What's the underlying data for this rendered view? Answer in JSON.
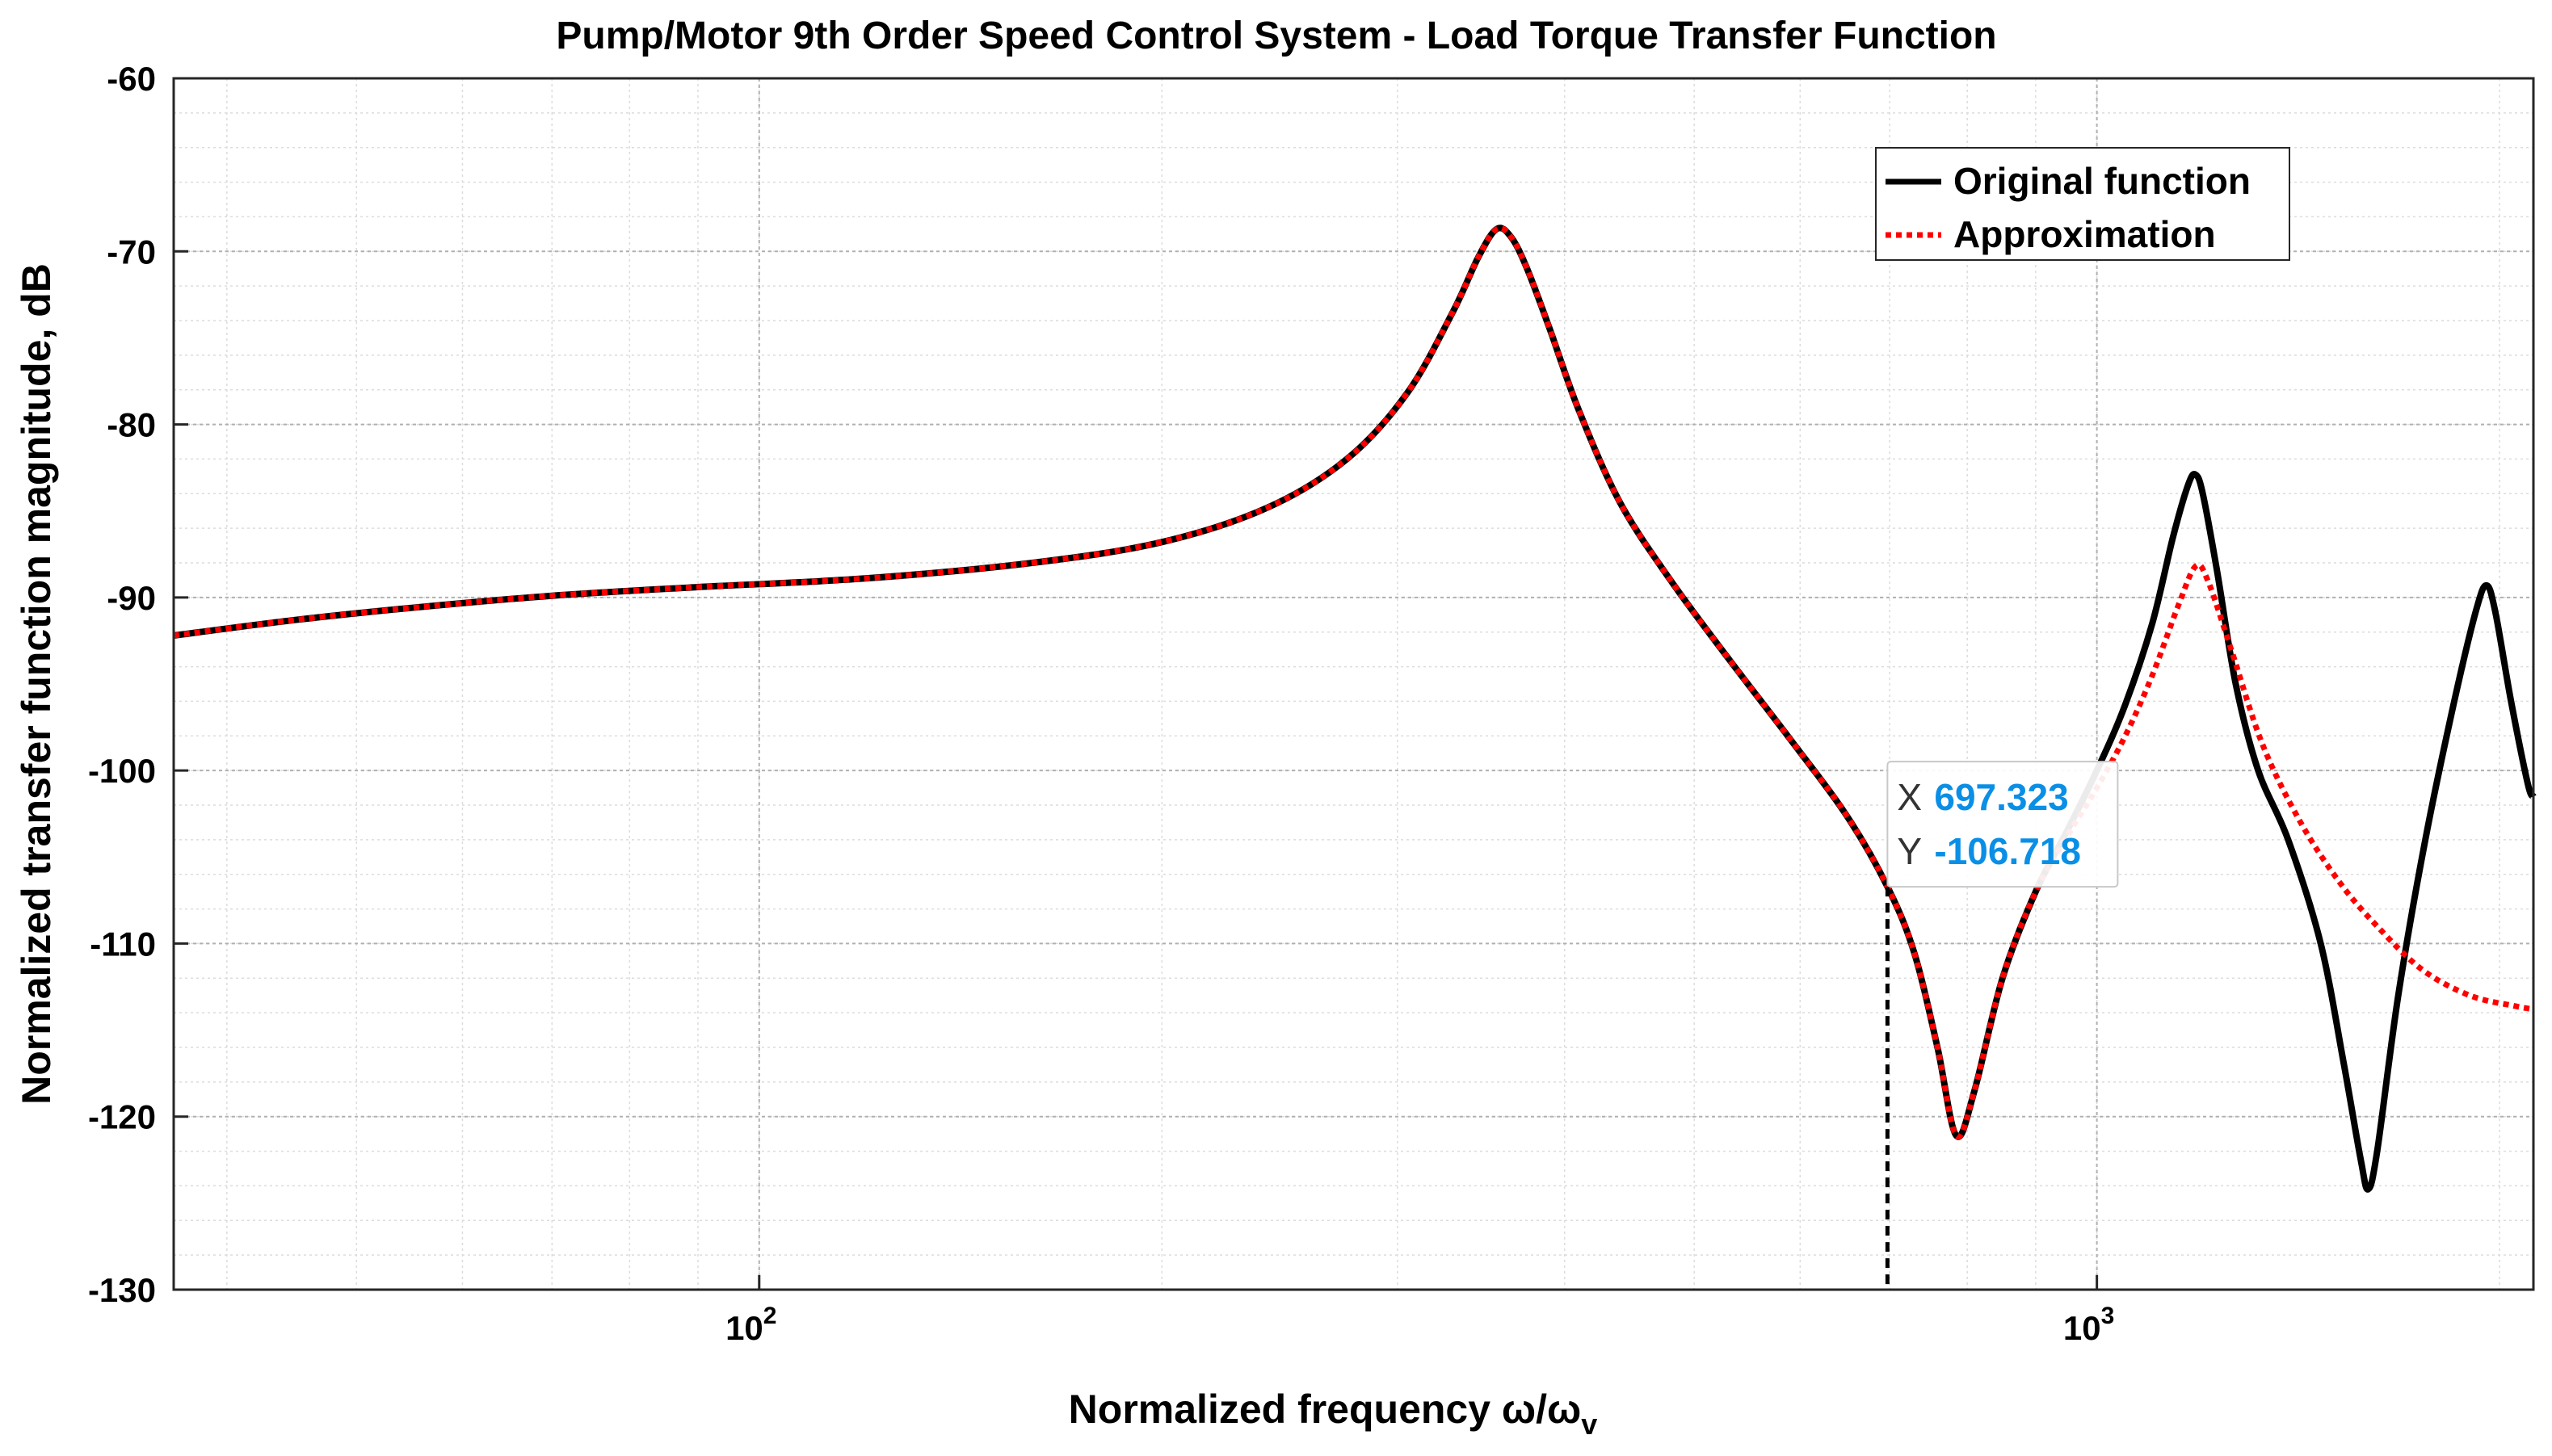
{
  "chart_data": {
    "type": "line",
    "title": "Pump/Motor 9th Order Speed Control System - Load Torque Transfer Function",
    "xlabel": "Normalized frequency ω/ω",
    "xlabel_subscript": "v",
    "ylabel": "Normalized transfer function magnitude, dB",
    "xscale": "log",
    "xlim": [
      36.5,
      2120
    ],
    "ylim": [
      -130,
      -60
    ],
    "yticks": [
      -60,
      -70,
      -80,
      -90,
      -100,
      -110,
      -120,
      -130
    ],
    "ytick_labels": [
      "-60",
      "-70",
      "-80",
      "-90",
      "-100",
      "-110",
      "-120",
      "-130"
    ],
    "xticks": [
      100,
      1000
    ],
    "xtick_base": "10",
    "xtick_exponents": [
      "2",
      "3"
    ],
    "grid": true,
    "minor_grid": true,
    "legend_position": "top-right",
    "series": [
      {
        "name": "Original function",
        "color": "#000000",
        "style": "solid",
        "points": [
          [
            36.5,
            -92.2
          ],
          [
            45,
            -91.3
          ],
          [
            55,
            -90.6
          ],
          [
            70,
            -89.9
          ],
          [
            90,
            -89.4
          ],
          [
            120,
            -88.9
          ],
          [
            160,
            -88.0
          ],
          [
            200,
            -86.8
          ],
          [
            240,
            -84.8
          ],
          [
            275,
            -82.0
          ],
          [
            305,
            -78.2
          ],
          [
            330,
            -73.5
          ],
          [
            345,
            -70.3
          ],
          [
            356,
            -68.7
          ],
          [
            365,
            -69.2
          ],
          [
            375,
            -71.0
          ],
          [
            390,
            -74.5
          ],
          [
            410,
            -79.2
          ],
          [
            440,
            -84.5
          ],
          [
            480,
            -89.0
          ],
          [
            530,
            -93.5
          ],
          [
            590,
            -98.2
          ],
          [
            650,
            -102.6
          ],
          [
            697.323,
            -106.718
          ],
          [
            730,
            -110.5
          ],
          [
            760,
            -116.0
          ],
          [
            785,
            -121.1
          ],
          [
            810,
            -118.5
          ],
          [
            850,
            -112.0
          ],
          [
            900,
            -107.0
          ],
          [
            950,
            -103.5
          ],
          [
            1000,
            -100.0
          ],
          [
            1050,
            -96.2
          ],
          [
            1100,
            -91.5
          ],
          [
            1140,
            -86.5
          ],
          [
            1170,
            -83.5
          ],
          [
            1185,
            -82.9
          ],
          [
            1200,
            -84.0
          ],
          [
            1230,
            -88.5
          ],
          [
            1270,
            -95.0
          ],
          [
            1320,
            -100.0
          ],
          [
            1390,
            -104.0
          ],
          [
            1470,
            -110.0
          ],
          [
            1530,
            -117.0
          ],
          [
            1575,
            -122.5
          ],
          [
            1595,
            -124.2
          ],
          [
            1620,
            -122.0
          ],
          [
            1680,
            -113.0
          ],
          [
            1760,
            -104.0
          ],
          [
            1850,
            -96.0
          ],
          [
            1920,
            -90.8
          ],
          [
            1955,
            -89.3
          ],
          [
            1985,
            -90.8
          ],
          [
            2040,
            -96.0
          ],
          [
            2100,
            -100.8
          ],
          [
            2120,
            -101.5
          ]
        ]
      },
      {
        "name": "Approximation",
        "color": "#ff0000",
        "style": "dotted",
        "points": [
          [
            36.5,
            -92.2
          ],
          [
            45,
            -91.3
          ],
          [
            55,
            -90.6
          ],
          [
            70,
            -89.9
          ],
          [
            90,
            -89.4
          ],
          [
            120,
            -88.9
          ],
          [
            160,
            -88.0
          ],
          [
            200,
            -86.8
          ],
          [
            240,
            -84.8
          ],
          [
            275,
            -82.0
          ],
          [
            305,
            -78.2
          ],
          [
            330,
            -73.5
          ],
          [
            345,
            -70.3
          ],
          [
            356,
            -68.7
          ],
          [
            365,
            -69.2
          ],
          [
            375,
            -71.0
          ],
          [
            390,
            -74.5
          ],
          [
            410,
            -79.2
          ],
          [
            440,
            -84.5
          ],
          [
            480,
            -89.0
          ],
          [
            530,
            -93.5
          ],
          [
            590,
            -98.2
          ],
          [
            650,
            -102.6
          ],
          [
            697.323,
            -106.718
          ],
          [
            730,
            -110.5
          ],
          [
            760,
            -116.0
          ],
          [
            785,
            -121.1
          ],
          [
            810,
            -118.5
          ],
          [
            850,
            -112.0
          ],
          [
            900,
            -107.0
          ],
          [
            950,
            -103.8
          ],
          [
            1000,
            -101.0
          ],
          [
            1050,
            -98.0
          ],
          [
            1100,
            -94.5
          ],
          [
            1150,
            -90.5
          ],
          [
            1185,
            -88.2
          ],
          [
            1210,
            -89.0
          ],
          [
            1260,
            -93.0
          ],
          [
            1330,
            -98.5
          ],
          [
            1420,
            -103.0
          ],
          [
            1520,
            -106.5
          ],
          [
            1620,
            -109.0
          ],
          [
            1750,
            -111.5
          ],
          [
            1900,
            -113.0
          ],
          [
            2050,
            -113.6
          ],
          [
            2120,
            -113.8
          ]
        ]
      }
    ],
    "datatip": {
      "x_key": "X",
      "x_value": "697.323",
      "y_key": "Y",
      "y_value": "-106.718",
      "x": 697.323,
      "y": -106.718
    }
  }
}
